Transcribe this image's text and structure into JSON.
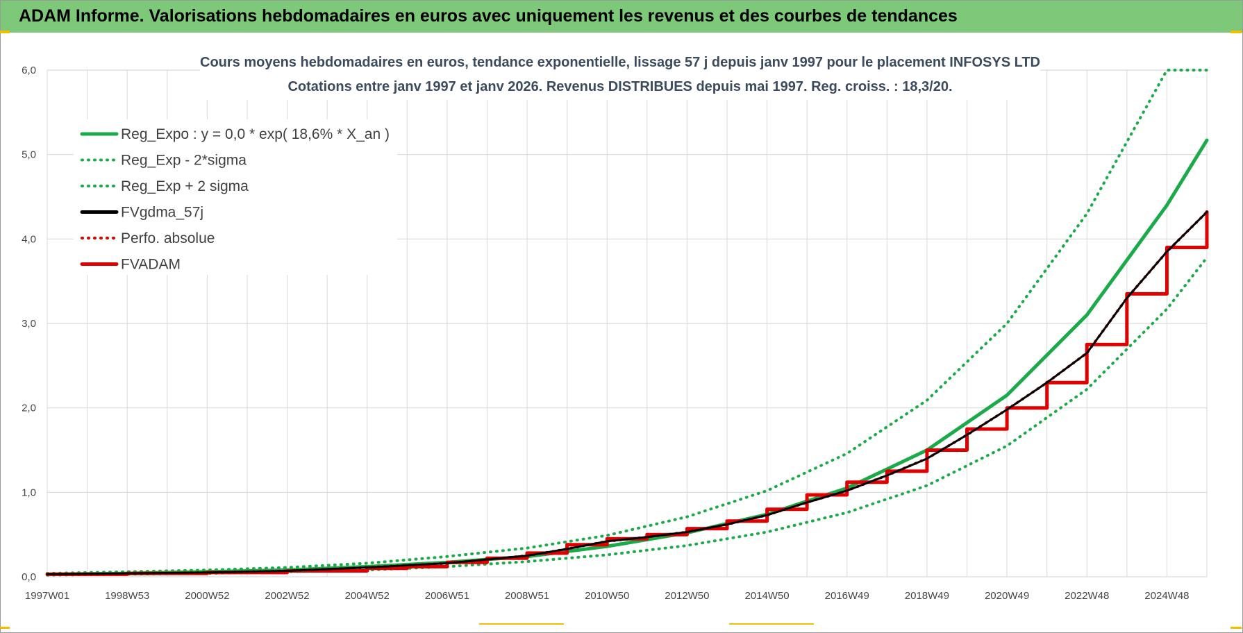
{
  "header": {
    "title": "ADAM Informe. Valorisations hebdomadaires en euros avec uniquement les revenus et des courbes de tendances"
  },
  "colors": {
    "header_bg": "#7ec87a",
    "green": "#1aaa4a",
    "black": "#000000",
    "red": "#e00000",
    "grid": "#d9d9d9"
  },
  "chart_data": {
    "type": "line",
    "title_lines": [
      "Cours moyens hebdomadaires en euros, tendance exponentielle, lissage 57 j depuis janv 1997  pour le placement INFOSYS LTD",
      "Cotations entre janv 1997 et janv 2026. Revenus DISTRIBUES depuis mai 1997.  Reg. croiss. : 18,3/20."
    ],
    "x_tick_labels": [
      "1997W01",
      "1998W53",
      "2000W52",
      "2002W52",
      "2004W52",
      "2006W51",
      "2008W51",
      "2010W50",
      "2012W50",
      "2014W50",
      "2016W49",
      "2018W49",
      "2020W49",
      "2022W48",
      "2024W48"
    ],
    "x_range_years": [
      1997.0,
      2026.0
    ],
    "y_tick_labels": [
      "0,0",
      "1,0",
      "2,0",
      "3,0",
      "4,0",
      "5,0",
      "6,0"
    ],
    "ylim": [
      0,
      6
    ],
    "grid": true,
    "legend_position": "top-left",
    "series": [
      {
        "name": "Reg_Expo : y = 0,0 * exp( 18,6% *  X_an )",
        "style": "solid",
        "color": "#1aaa4a",
        "x": [
          1997,
          1999,
          2001,
          2003,
          2005,
          2007,
          2009,
          2011,
          2013,
          2015,
          2017,
          2019,
          2021,
          2023,
          2025,
          2026
        ],
        "values": [
          0.03,
          0.04,
          0.06,
          0.08,
          0.12,
          0.17,
          0.24,
          0.36,
          0.52,
          0.74,
          1.05,
          1.5,
          2.15,
          3.1,
          4.4,
          5.17
        ]
      },
      {
        "name": "Reg_Exp - 2*sigma",
        "style": "dotted",
        "color": "#1aaa4a",
        "x": [
          1997,
          1999,
          2001,
          2003,
          2005,
          2007,
          2009,
          2011,
          2013,
          2015,
          2017,
          2019,
          2021,
          2023,
          2025,
          2026
        ],
        "values": [
          0.02,
          0.03,
          0.04,
          0.06,
          0.08,
          0.12,
          0.18,
          0.26,
          0.37,
          0.53,
          0.76,
          1.08,
          1.55,
          2.22,
          3.17,
          3.78
        ]
      },
      {
        "name": "Reg_Exp + 2 sigma",
        "style": "dotted",
        "color": "#1aaa4a",
        "x": [
          1997,
          1999,
          2001,
          2003,
          2005,
          2007,
          2009,
          2011,
          2013,
          2015,
          2017,
          2019,
          2021,
          2023,
          2024,
          2025,
          2026
        ],
        "values": [
          0.04,
          0.06,
          0.08,
          0.11,
          0.16,
          0.24,
          0.34,
          0.49,
          0.71,
          1.02,
          1.46,
          2.09,
          3.0,
          4.3,
          5.15,
          6.0,
          6.0
        ]
      },
      {
        "name": "FVgdma_57j",
        "style": "solid",
        "color": "#000000",
        "x": [
          1997,
          1999,
          2001,
          2003,
          2005,
          2007,
          2009,
          2010,
          2011,
          2012,
          2013,
          2014,
          2015,
          2016,
          2017,
          2018,
          2019,
          2020,
          2021,
          2022,
          2023,
          2024,
          2025,
          2026
        ],
        "values": [
          0.03,
          0.04,
          0.05,
          0.07,
          0.11,
          0.16,
          0.25,
          0.33,
          0.42,
          0.47,
          0.53,
          0.62,
          0.73,
          0.88,
          1.02,
          1.2,
          1.4,
          1.68,
          1.98,
          2.3,
          2.65,
          3.3,
          3.85,
          4.32
        ]
      },
      {
        "name": "Perfo. absolue",
        "style": "dotted",
        "color": "#e00000",
        "x": [
          1997,
          1999,
          2001,
          2003,
          2005,
          2007,
          2009,
          2010,
          2011,
          2012,
          2013,
          2014,
          2015,
          2016,
          2017,
          2018,
          2019,
          2020,
          2021,
          2022,
          2023,
          2024,
          2025,
          2026
        ],
        "values": [
          0.03,
          0.04,
          0.05,
          0.07,
          0.11,
          0.16,
          0.25,
          0.33,
          0.42,
          0.47,
          0.53,
          0.62,
          0.73,
          0.88,
          1.02,
          1.2,
          1.4,
          1.68,
          1.98,
          2.3,
          2.65,
          3.3,
          3.85,
          4.32
        ]
      },
      {
        "name": "FVADAM",
        "style": "solid",
        "color": "#e00000",
        "x": [
          1997,
          1999,
          2001,
          2003,
          2005,
          2006,
          2007,
          2008,
          2009,
          2010,
          2011,
          2012,
          2013,
          2014,
          2015,
          2016,
          2017,
          2018,
          2019,
          2020,
          2021,
          2022,
          2023,
          2024,
          2025,
          2026
        ],
        "values": [
          0.03,
          0.04,
          0.05,
          0.07,
          0.1,
          0.12,
          0.17,
          0.22,
          0.28,
          0.38,
          0.45,
          0.5,
          0.57,
          0.66,
          0.8,
          0.97,
          1.12,
          1.25,
          1.5,
          1.75,
          2.0,
          2.3,
          2.75,
          3.35,
          3.9,
          4.32
        ]
      }
    ]
  }
}
